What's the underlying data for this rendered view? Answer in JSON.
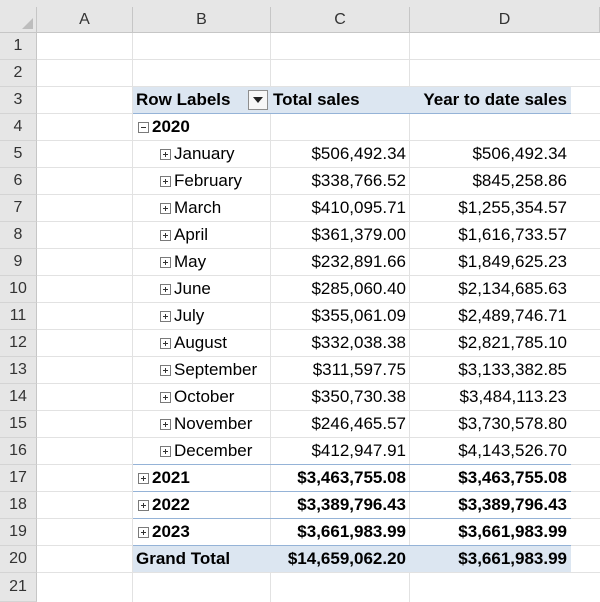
{
  "columns": [
    "A",
    "B",
    "C",
    "D"
  ],
  "rows": [
    "1",
    "2",
    "3",
    "4",
    "5",
    "6",
    "7",
    "8",
    "9",
    "10",
    "11",
    "12",
    "13",
    "14",
    "15",
    "16",
    "17",
    "18",
    "19",
    "20",
    "21"
  ],
  "pivot": {
    "headers": {
      "row_labels": "Row Labels",
      "total_sales": "Total sales",
      "ytd_sales": "Year to date sales"
    },
    "year_2020": "2020",
    "months": [
      {
        "label": "January",
        "total": "$506,492.34",
        "ytd": "$506,492.34"
      },
      {
        "label": "February",
        "total": "$338,766.52",
        "ytd": "$845,258.86"
      },
      {
        "label": "March",
        "total": "$410,095.71",
        "ytd": "$1,255,354.57"
      },
      {
        "label": "April",
        "total": "$361,379.00",
        "ytd": "$1,616,733.57"
      },
      {
        "label": "May",
        "total": "$232,891.66",
        "ytd": "$1,849,625.23"
      },
      {
        "label": "June",
        "total": "$285,060.40",
        "ytd": "$2,134,685.63"
      },
      {
        "label": "July",
        "total": "$355,061.09",
        "ytd": "$2,489,746.71"
      },
      {
        "label": "August",
        "total": "$332,038.38",
        "ytd": "$2,821,785.10"
      },
      {
        "label": "September",
        "total": "$311,597.75",
        "ytd": "$3,133,382.85"
      },
      {
        "label": "October",
        "total": "$350,730.38",
        "ytd": "$3,484,113.23"
      },
      {
        "label": "November",
        "total": "$246,465.57",
        "ytd": "$3,730,578.80"
      },
      {
        "label": "December",
        "total": "$412,947.91",
        "ytd": "$4,143,526.70"
      }
    ],
    "years_collapsed": [
      {
        "label": "2021",
        "total": "$3,463,755.08",
        "ytd": "$3,463,755.08"
      },
      {
        "label": "2022",
        "total": "$3,389,796.43",
        "ytd": "$3,389,796.43"
      },
      {
        "label": "2023",
        "total": "$3,661,983.99",
        "ytd": "$3,661,983.99"
      }
    ],
    "grand_total": {
      "label": "Grand Total",
      "total": "$14,659,062.20",
      "ytd": "$3,661,983.99"
    }
  }
}
